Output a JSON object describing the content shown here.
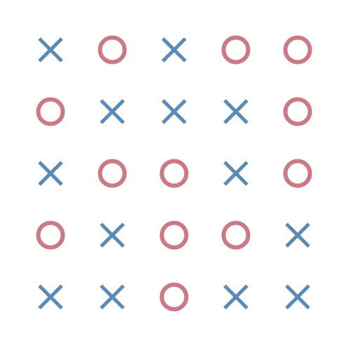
{
  "board": {
    "rows": 5,
    "cols": 5,
    "cells": [
      [
        "X",
        "O",
        "X",
        "O",
        "O"
      ],
      [
        "O",
        "X",
        "X",
        "X",
        "O"
      ],
      [
        "X",
        "O",
        "O",
        "X",
        "O"
      ],
      [
        "O",
        "X",
        "O",
        "O",
        "X"
      ],
      [
        "X",
        "X",
        "O",
        "X",
        "X"
      ]
    ]
  },
  "colors": {
    "x": "#5b8ab5",
    "o": "#c97a85",
    "background": "#ffffff"
  },
  "icons": {
    "X": "x-mark-icon",
    "O": "o-mark-icon"
  }
}
